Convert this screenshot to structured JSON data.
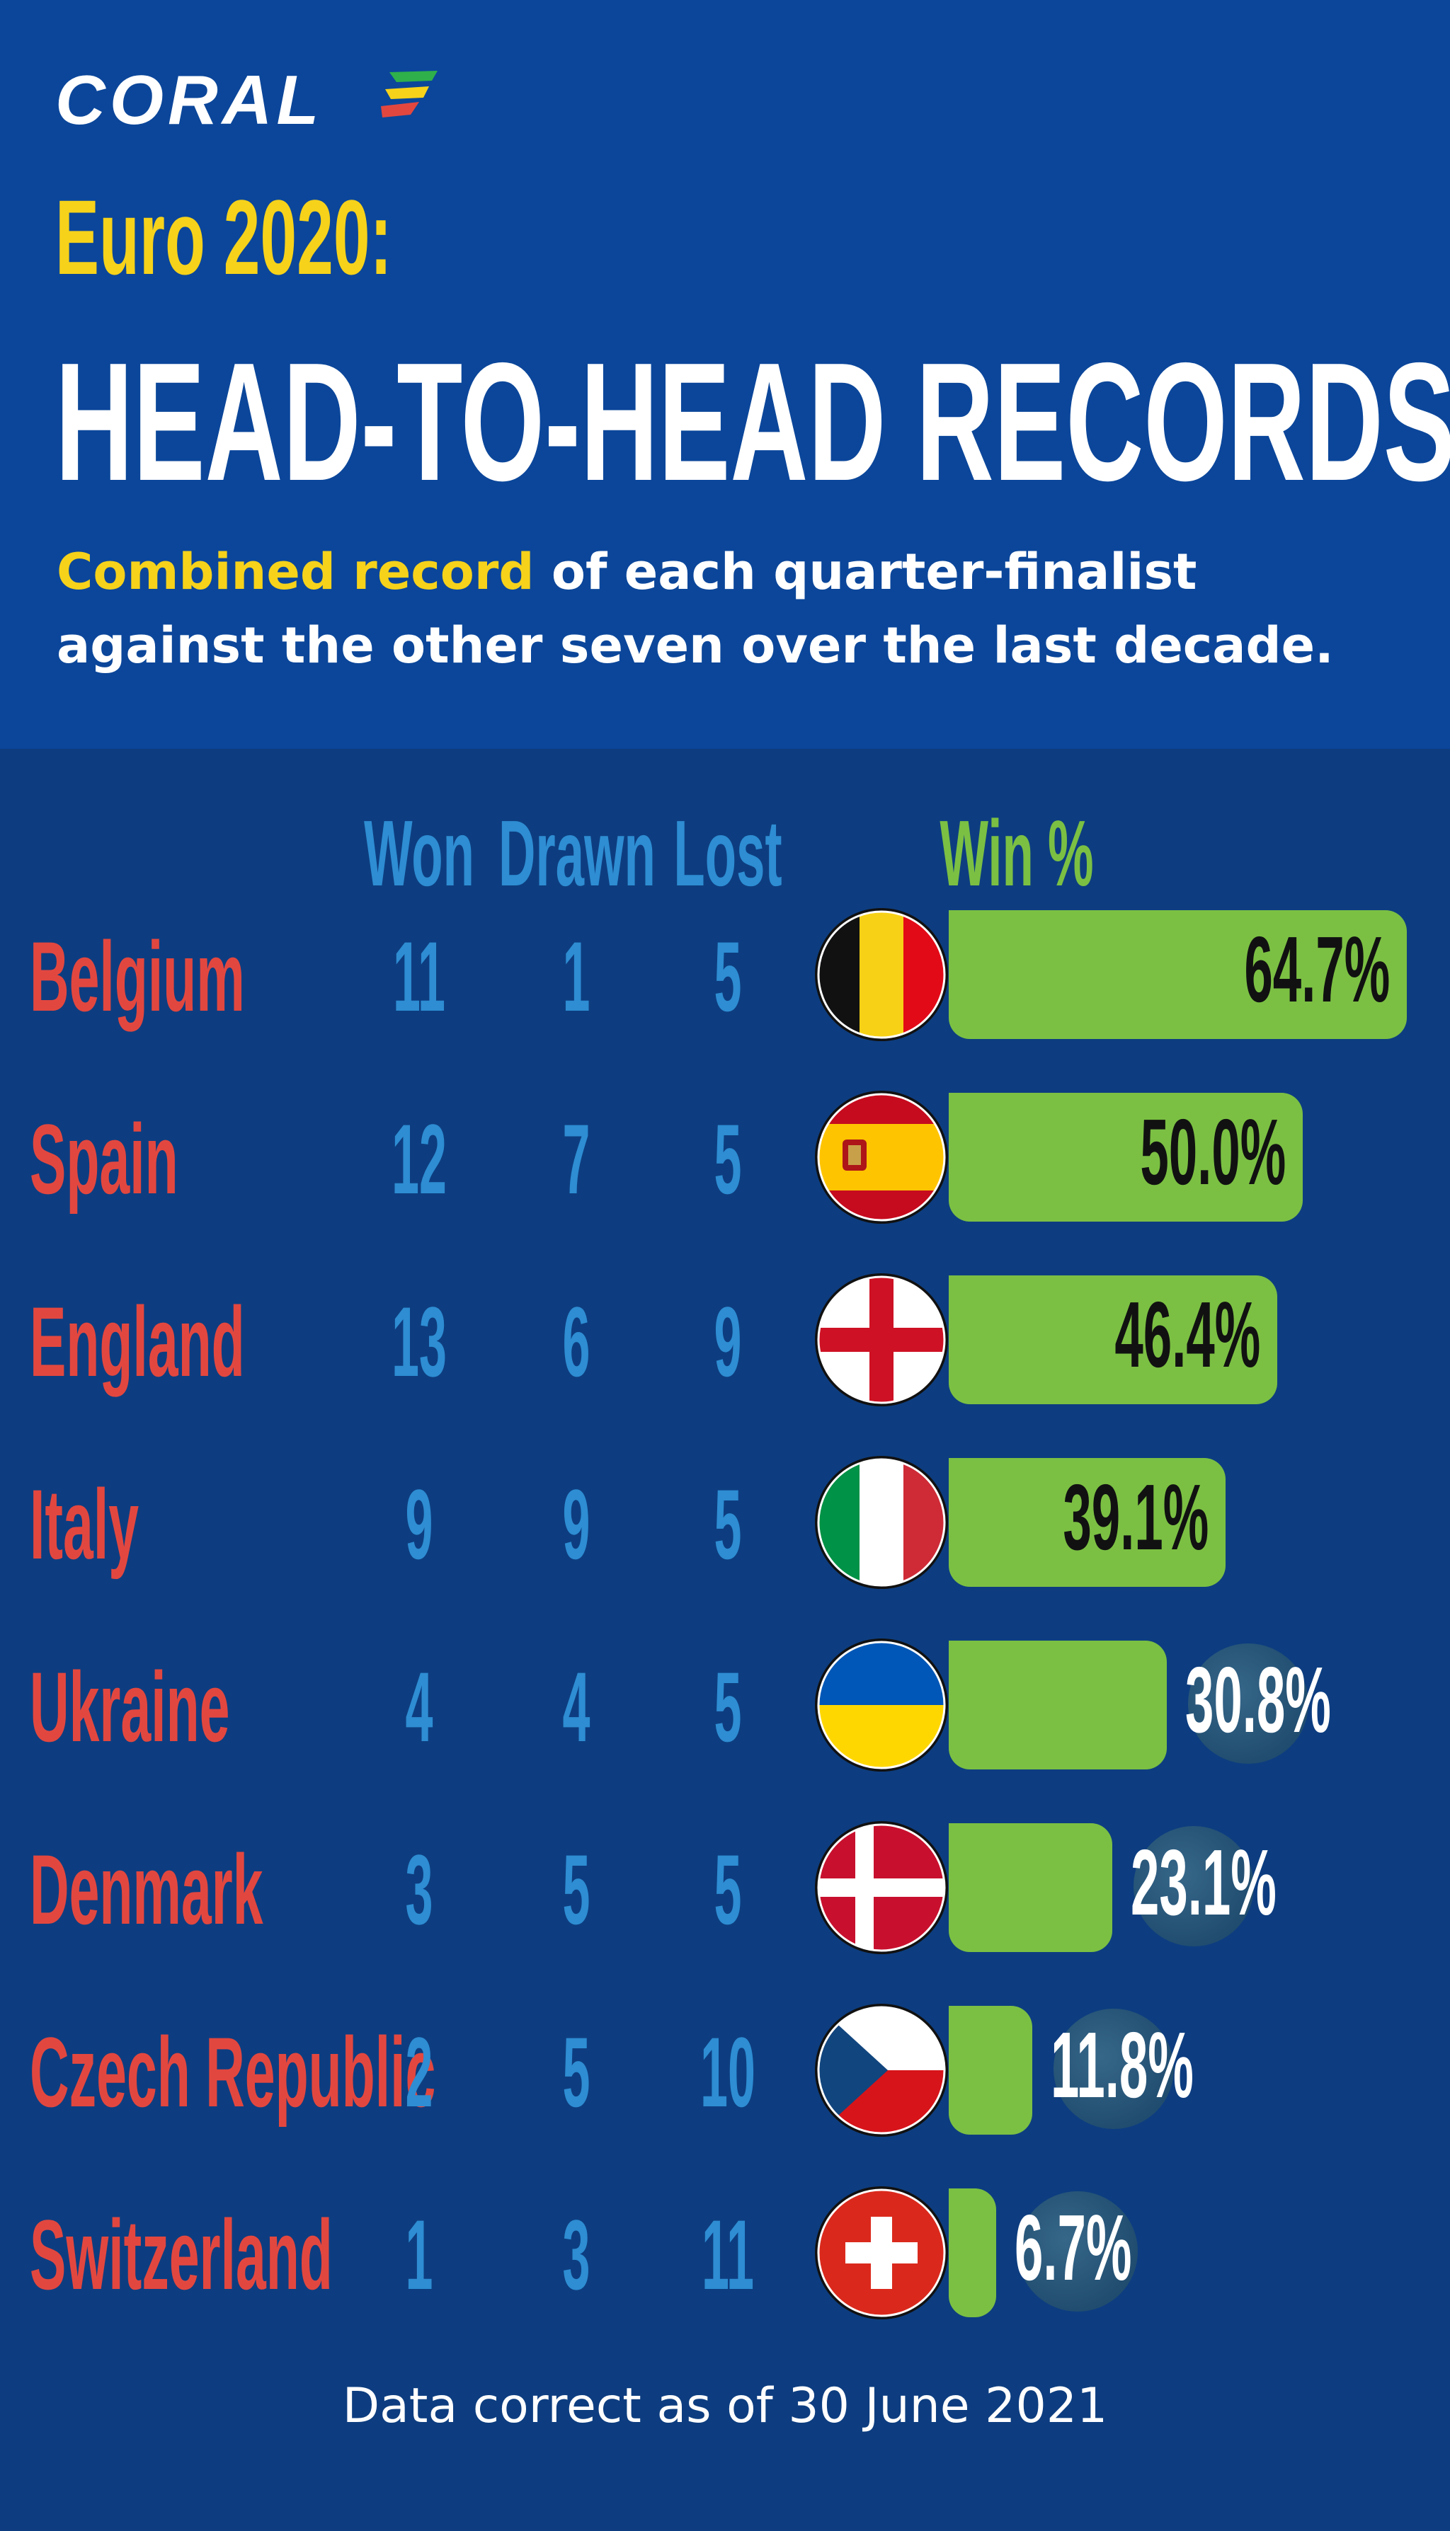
{
  "brand": {
    "name": "CORAL"
  },
  "header": {
    "title_pre": "Euro 2020:",
    "title_main": "HEAD-TO-HEAD RECORDS",
    "subtitle_highlight": "Combined record",
    "subtitle_rest": " of each quarter-finalist against the other seven over the last decade."
  },
  "colors": {
    "background": "#0d3d80",
    "header_background": "#0b469a",
    "team_label": "#e2473f",
    "stat_numbers": "#2e8dd3",
    "bar": "#7bc043",
    "highlight": "#f6d21a"
  },
  "chart_data": {
    "type": "bar",
    "orientation": "horizontal",
    "columns": {
      "won": "Won",
      "drawn": "Drawn",
      "lost": "Lost",
      "win_pct": "Win %"
    },
    "rows": [
      {
        "team": "Belgium",
        "flag": "belgium-flag-icon",
        "won": "11",
        "drawn": "1",
        "lost": "5",
        "win_pct": 64.7,
        "win_pct_label": "64.7%"
      },
      {
        "team": "Spain",
        "flag": "spain-flag-icon",
        "won": "12",
        "drawn": "7",
        "lost": "5",
        "win_pct": 50.0,
        "win_pct_label": "50.0%"
      },
      {
        "team": "England",
        "flag": "england-flag-icon",
        "won": "13",
        "drawn": "6",
        "lost": "9",
        "win_pct": 46.4,
        "win_pct_label": "46.4%"
      },
      {
        "team": "Italy",
        "flag": "italy-flag-icon",
        "won": "9",
        "drawn": "9",
        "lost": "5",
        "win_pct": 39.1,
        "win_pct_label": "39.1%"
      },
      {
        "team": "Ukraine",
        "flag": "ukraine-flag-icon",
        "won": "4",
        "drawn": "4",
        "lost": "5",
        "win_pct": 30.8,
        "win_pct_label": "30.8%"
      },
      {
        "team": "Denmark",
        "flag": "denmark-flag-icon",
        "won": "3",
        "drawn": "5",
        "lost": "5",
        "win_pct": 23.1,
        "win_pct_label": "23.1%"
      },
      {
        "team": "Czech Republic",
        "flag": "czech-republic-flag-icon",
        "won": "2",
        "drawn": "5",
        "lost": "10",
        "win_pct": 11.8,
        "win_pct_label": "11.8%"
      },
      {
        "team": "Switzerland",
        "flag": "switzerland-flag-icon",
        "won": "1",
        "drawn": "3",
        "lost": "11",
        "win_pct": 6.7,
        "win_pct_label": "6.7%"
      }
    ]
  },
  "footnote": "Data correct as of 30 June 2021"
}
